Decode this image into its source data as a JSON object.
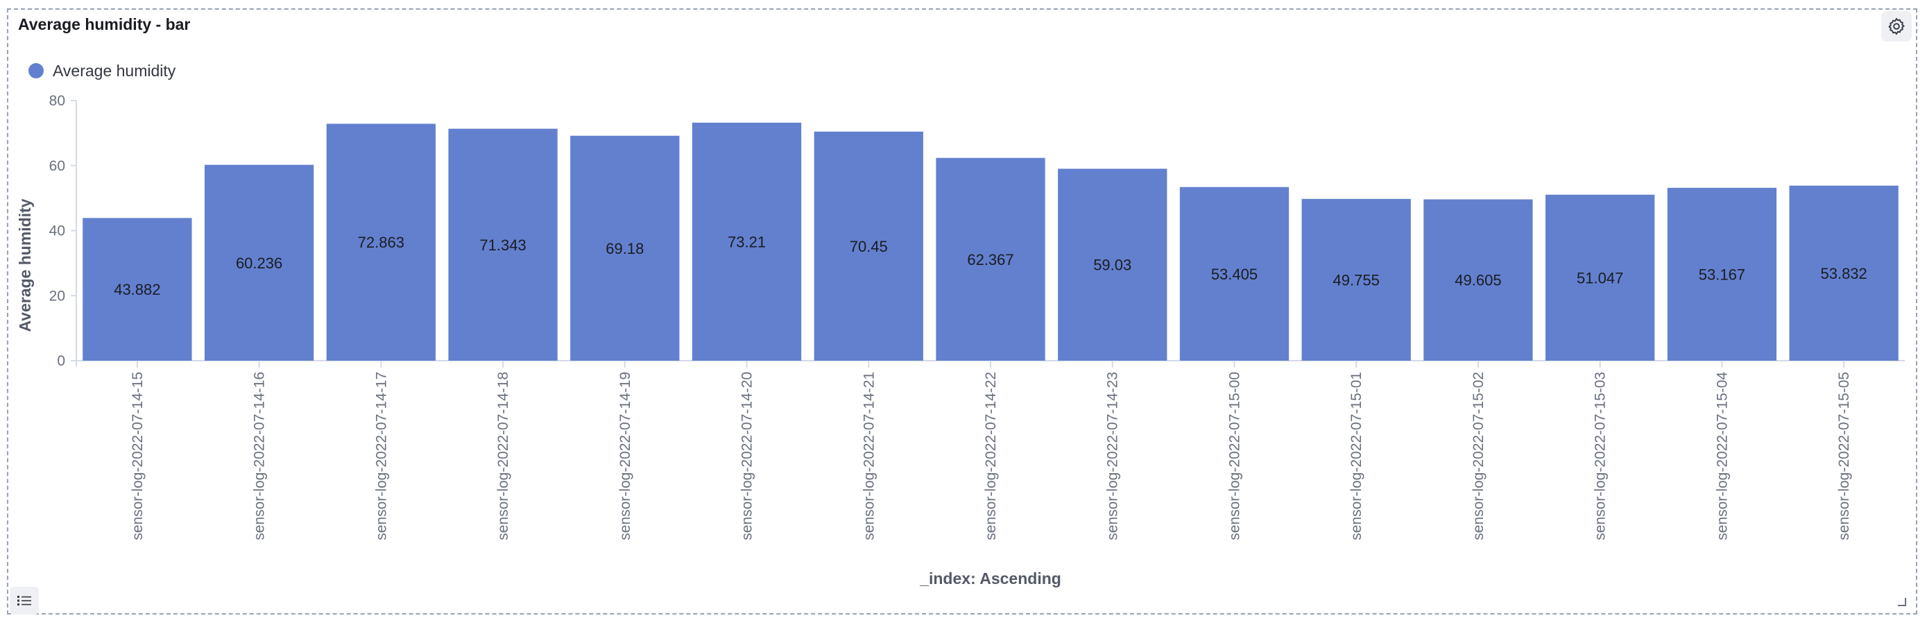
{
  "panel": {
    "title": "Average humidity - bar",
    "settings_icon": "gear-icon",
    "legend_toggle_icon": "list-icon"
  },
  "chart_data": {
    "type": "bar",
    "legend": {
      "placement": "top-left",
      "entries": [
        {
          "name": "Average humidity",
          "color": "#6380cf"
        }
      ]
    },
    "categories": [
      "sensor-log-2022-07-14-15",
      "sensor-log-2022-07-14-16",
      "sensor-log-2022-07-14-17",
      "sensor-log-2022-07-14-18",
      "sensor-log-2022-07-14-19",
      "sensor-log-2022-07-14-20",
      "sensor-log-2022-07-14-21",
      "sensor-log-2022-07-14-22",
      "sensor-log-2022-07-14-23",
      "sensor-log-2022-07-15-00",
      "sensor-log-2022-07-15-01",
      "sensor-log-2022-07-15-02",
      "sensor-log-2022-07-15-03",
      "sensor-log-2022-07-15-04",
      "sensor-log-2022-07-15-05"
    ],
    "series": [
      {
        "name": "Average humidity",
        "color": "#6380cf",
        "values": [
          43.882,
          60.236,
          72.863,
          71.343,
          69.18,
          73.21,
          70.45,
          62.367,
          59.03,
          53.405,
          49.755,
          49.605,
          51.047,
          53.167,
          53.832
        ],
        "value_labels": [
          "43.882",
          "60.236",
          "72.863",
          "71.343",
          "69.18",
          "73.21",
          "70.45",
          "62.367",
          "59.03",
          "53.405",
          "49.755",
          "49.605",
          "51.047",
          "53.167",
          "53.832"
        ]
      }
    ],
    "xlabel": "_index: Ascending",
    "ylabel": "Average humidity",
    "ylim": [
      0,
      80
    ],
    "yticks": [
      0,
      20,
      40,
      60,
      80
    ],
    "ytick_labels": [
      "0",
      "20",
      "40",
      "60",
      "80"
    ],
    "grid": false
  }
}
